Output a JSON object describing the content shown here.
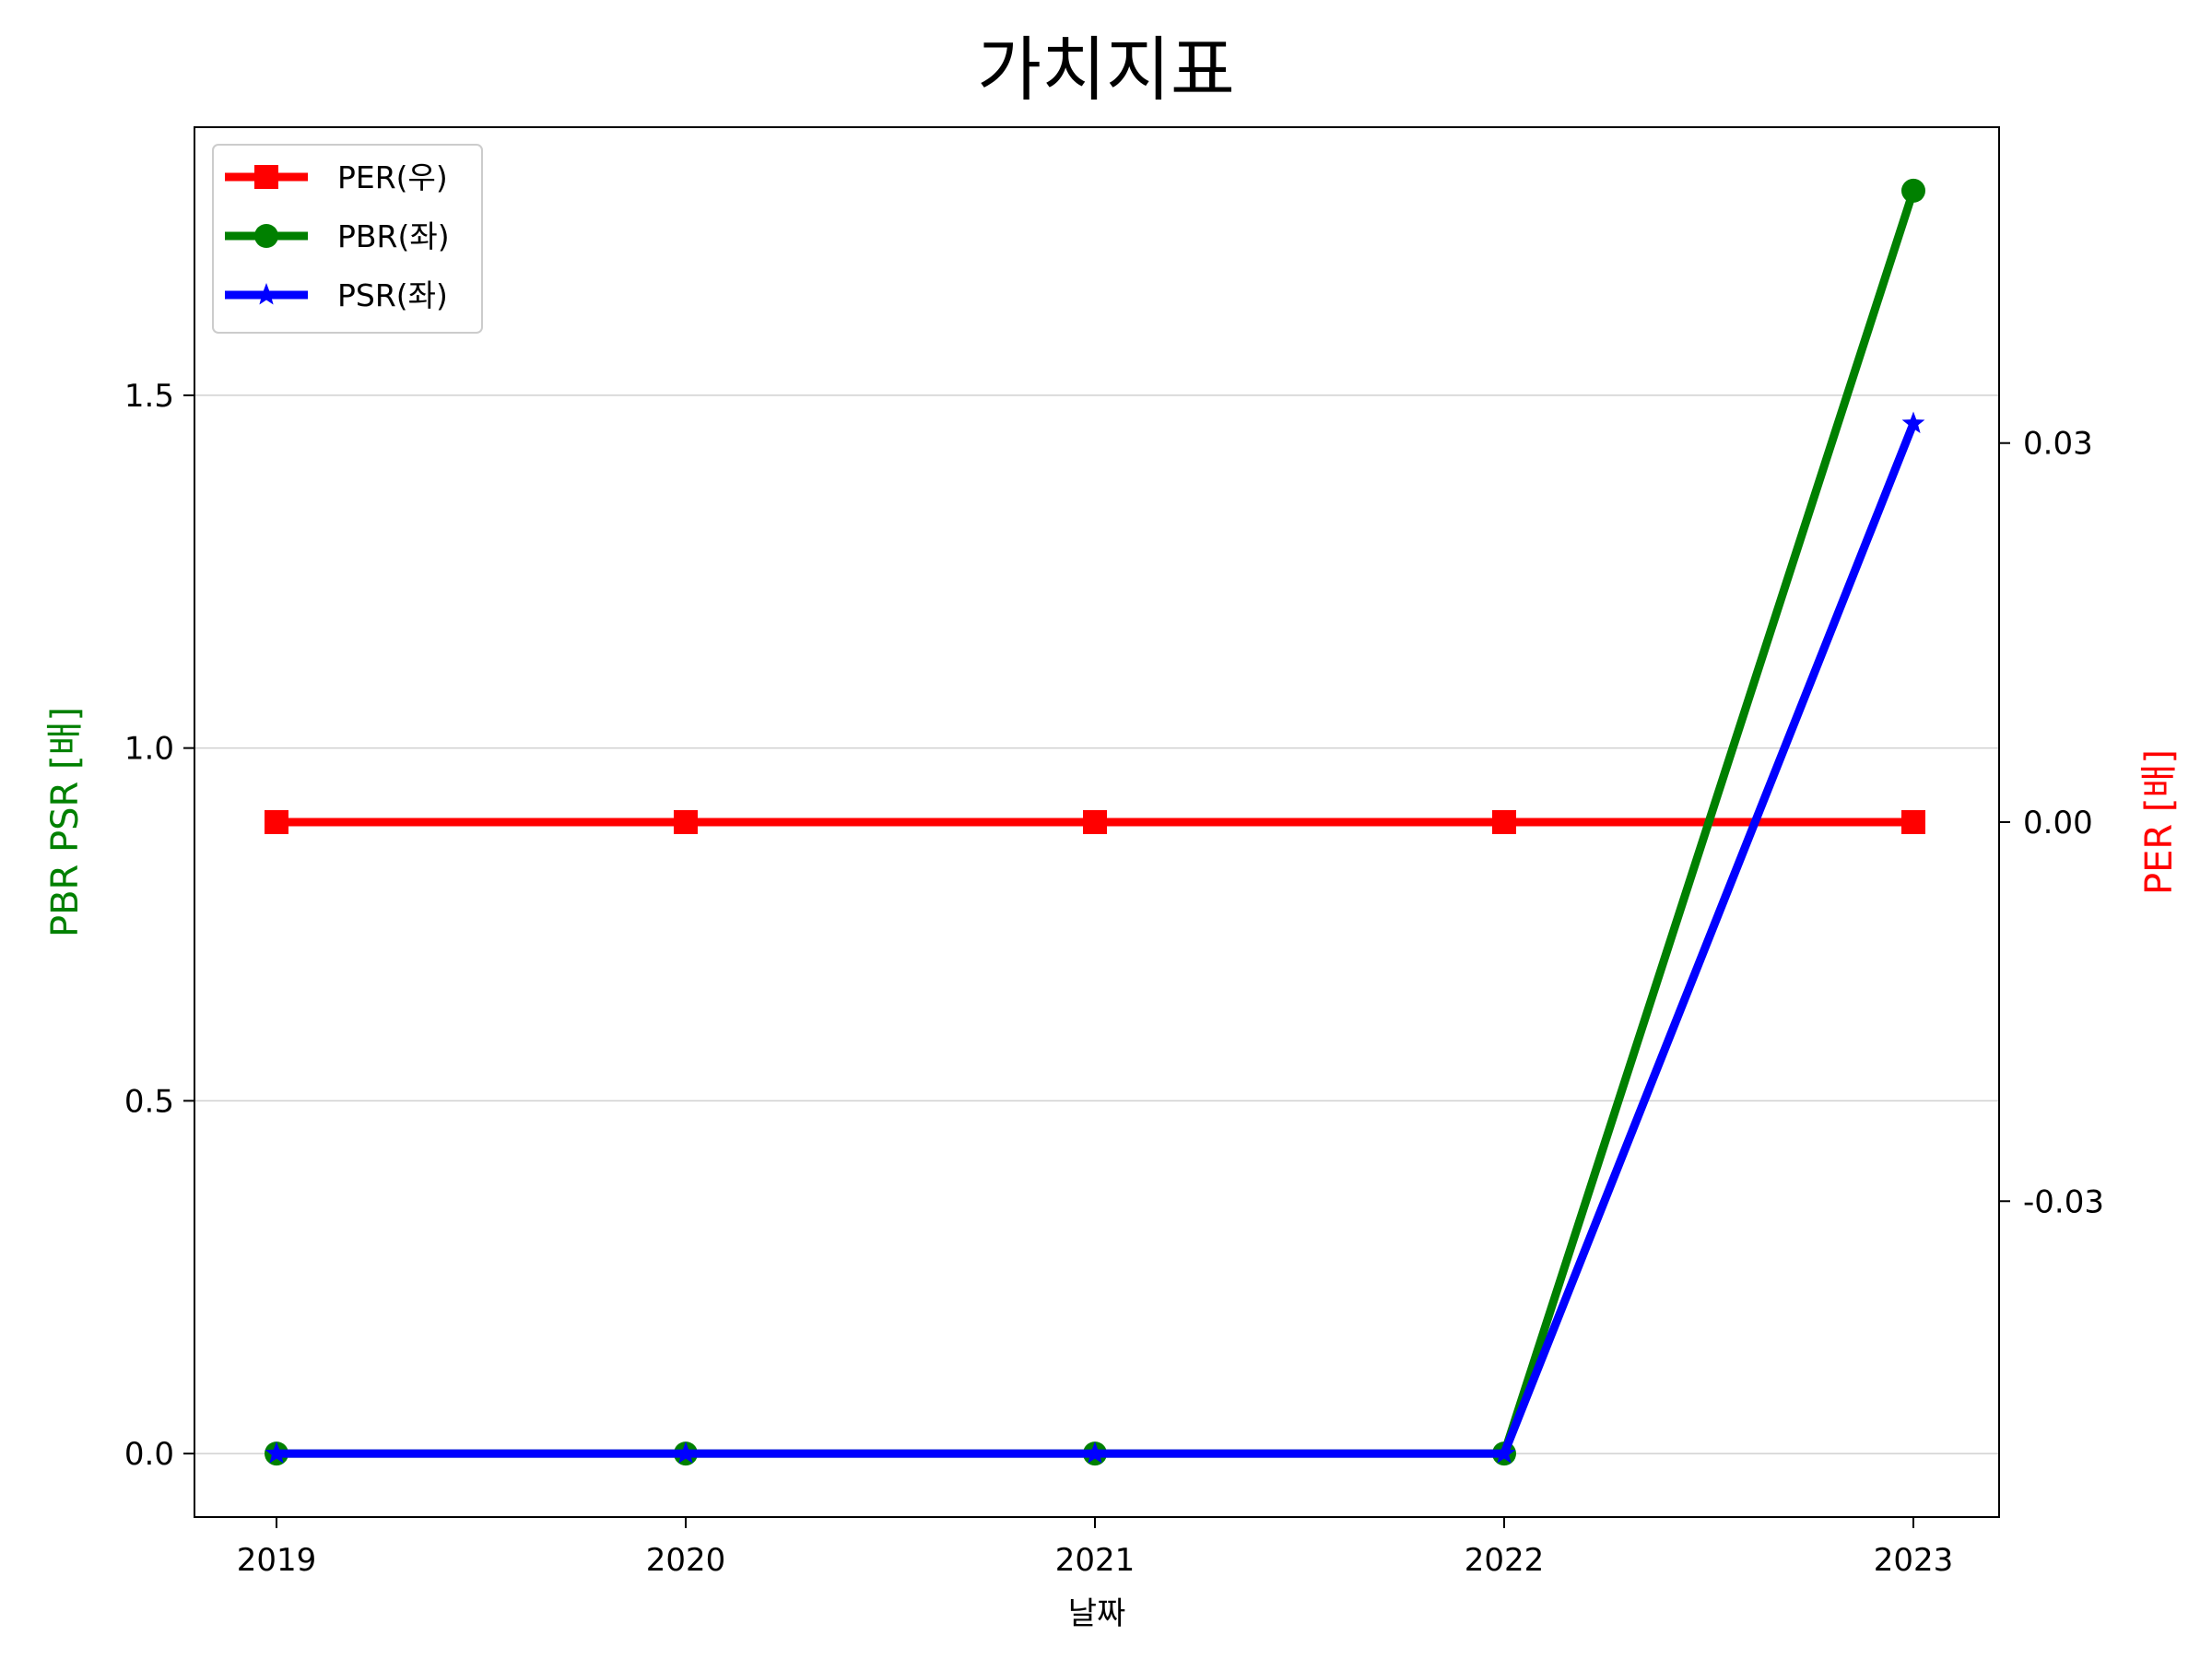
{
  "chart_data": {
    "type": "line",
    "title": "가치지표",
    "xlabel": "날짜",
    "ylabel_left": "PBR PSR [배]",
    "ylabel_right": "PER [배]",
    "ylabel_left_color": "#008000",
    "ylabel_right_color": "#ff0000",
    "categories": [
      "2019",
      "2020",
      "2021",
      "2022",
      "2023"
    ],
    "ylim_left": [
      -0.09,
      1.88
    ],
    "yticks_left": [
      0.0,
      0.5,
      1.0,
      1.5
    ],
    "ytick_labels_left": [
      "0.0",
      "0.5",
      "1.0",
      "1.5"
    ],
    "ylim_right": [
      -0.055,
      0.055
    ],
    "yticks_right": [
      -0.03,
      0.0,
      0.03
    ],
    "ytick_labels_right": [
      "-0.03",
      "0.00",
      "0.03"
    ],
    "grid": true,
    "legend_position": "top-left",
    "series": [
      {
        "name": "PER(우)",
        "axis": "right",
        "color": "#ff0000",
        "marker": "square",
        "values": [
          0,
          0,
          0,
          0,
          0
        ]
      },
      {
        "name": "PBR(좌)",
        "axis": "left",
        "color": "#008000",
        "marker": "circle",
        "values": [
          0,
          0,
          0,
          0,
          1.79
        ]
      },
      {
        "name": "PSR(좌)",
        "axis": "left",
        "color": "#0000ff",
        "marker": "star",
        "values": [
          0,
          0,
          0,
          0,
          1.46
        ]
      }
    ]
  }
}
